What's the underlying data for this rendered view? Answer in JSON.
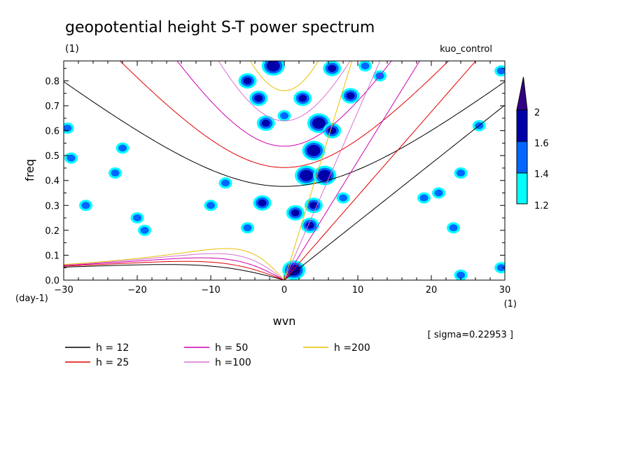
{
  "chart_data": {
    "type": "contour",
    "title": "geopotential height S-T power spectrum",
    "title_unit": "(1)",
    "case_label": "kuo_control",
    "xlabel": "wvn",
    "x_unit": "(1)",
    "ylabel": "freq",
    "y_unit": "(day-1)",
    "xlim": [
      -30,
      30
    ],
    "ylim": [
      0.0,
      0.88
    ],
    "x_ticks": [
      -30,
      -20,
      -10,
      0,
      10,
      20,
      30
    ],
    "y_ticks": [
      0.0,
      0.1,
      0.2,
      0.3,
      0.4,
      0.5,
      0.6,
      0.7,
      0.8
    ],
    "sigma_note": "[ sigma=0.22953 ]",
    "colorbar": {
      "levels": [
        "1.2",
        "1.4",
        "1.6",
        "2"
      ],
      "colors": [
        "#00ffff",
        "#0066ff",
        "#0000aa",
        "#330088"
      ]
    },
    "dispersion_legend": [
      {
        "label": "h = 12",
        "h": 12,
        "color": "#000000"
      },
      {
        "label": "h = 25",
        "h": 25,
        "color": "#e00000"
      },
      {
        "label": "h = 50",
        "h": 50,
        "color": "#d000b0"
      },
      {
        "label": "h =100",
        "h": 100,
        "color": "#d870d0"
      },
      {
        "label": "h =200",
        "h": 200,
        "color": "#e8c000"
      }
    ],
    "spectral_blobs": [
      {
        "x": 1.3,
        "y": 0.04,
        "level": 3
      },
      {
        "x": -1.5,
        "y": 0.86,
        "level": 3
      },
      {
        "x": 4.7,
        "y": 0.63,
        "level": 3
      },
      {
        "x": 4.0,
        "y": 0.52,
        "level": 3
      },
      {
        "x": 3.0,
        "y": 0.42,
        "level": 3
      },
      {
        "x": 5.5,
        "y": 0.42,
        "level": 3
      },
      {
        "x": 4.0,
        "y": 0.3,
        "level": 2
      },
      {
        "x": 3.5,
        "y": 0.22,
        "level": 2
      },
      {
        "x": 6.5,
        "y": 0.6,
        "level": 2
      },
      {
        "x": 9.0,
        "y": 0.74,
        "level": 2
      },
      {
        "x": 6.5,
        "y": 0.85,
        "level": 2
      },
      {
        "x": 2.5,
        "y": 0.73,
        "level": 2
      },
      {
        "x": -3.5,
        "y": 0.73,
        "level": 2
      },
      {
        "x": -2.5,
        "y": 0.63,
        "level": 2
      },
      {
        "x": -5.0,
        "y": 0.8,
        "level": 2
      },
      {
        "x": -3.0,
        "y": 0.31,
        "level": 2
      },
      {
        "x": 1.5,
        "y": 0.27,
        "level": 2
      },
      {
        "x": 0.0,
        "y": 0.66,
        "level": 1
      },
      {
        "x": 11.0,
        "y": 0.86,
        "level": 1
      },
      {
        "x": 13.0,
        "y": 0.82,
        "level": 1
      },
      {
        "x": -20.0,
        "y": 0.25,
        "level": 1
      },
      {
        "x": -19.0,
        "y": 0.2,
        "level": 1
      },
      {
        "x": -23.0,
        "y": 0.43,
        "level": 1
      },
      {
        "x": -29.0,
        "y": 0.49,
        "level": 1
      },
      {
        "x": -29.5,
        "y": 0.61,
        "level": 1
      },
      {
        "x": -22.0,
        "y": 0.53,
        "level": 1
      },
      {
        "x": -10.0,
        "y": 0.3,
        "level": 1
      },
      {
        "x": -8.0,
        "y": 0.39,
        "level": 1
      },
      {
        "x": -5.0,
        "y": 0.21,
        "level": 1
      },
      {
        "x": 19.0,
        "y": 0.33,
        "level": 1
      },
      {
        "x": 21.0,
        "y": 0.35,
        "level": 1
      },
      {
        "x": 23.0,
        "y": 0.21,
        "level": 1
      },
      {
        "x": 26.5,
        "y": 0.62,
        "level": 1
      },
      {
        "x": 29.5,
        "y": 0.05,
        "level": 1
      },
      {
        "x": 24.0,
        "y": 0.02,
        "level": 1
      },
      {
        "x": 29.5,
        "y": 0.84,
        "level": 1
      },
      {
        "x": -27.0,
        "y": 0.3,
        "level": 1
      },
      {
        "x": 8.0,
        "y": 0.33,
        "level": 1
      },
      {
        "x": 24.0,
        "y": 0.43,
        "level": 1
      }
    ]
  }
}
